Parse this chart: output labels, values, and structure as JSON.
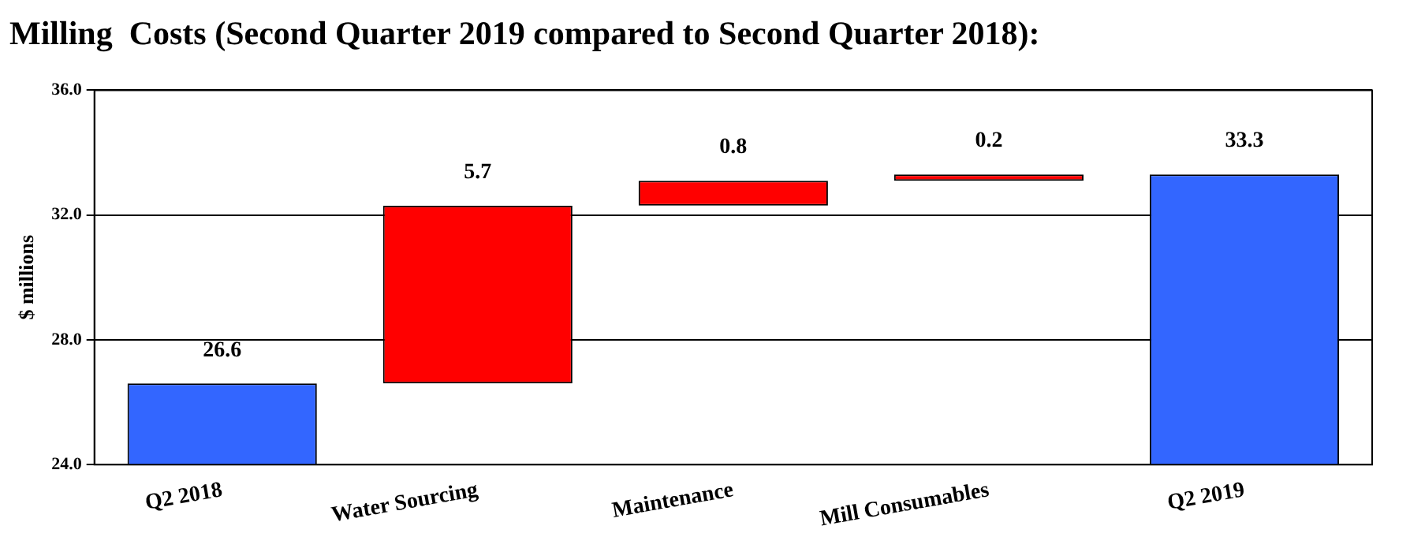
{
  "chart_data": {
    "type": "bar",
    "title": "Milling  Costs (Second Quarter 2019 compared to Second Quarter 2018):",
    "ylabel": "$ millions",
    "categories": [
      "Q2 2018",
      "Water Sourcing",
      "Maintenance",
      "Mill Consumables",
      "Q2 2019"
    ],
    "values": [
      26.6,
      5.7,
      0.8,
      0.2,
      33.3
    ],
    "base": [
      null,
      26.6,
      32.3,
      33.1,
      null
    ],
    "colors": [
      "#3366ff",
      "#ff0000",
      "#ff0000",
      "#ff0000",
      "#3366ff"
    ],
    "ylim": [
      24,
      36
    ],
    "yticks": [
      {
        "value": 24,
        "label": "24.0"
      },
      {
        "value": 28,
        "label": "28.0"
      },
      {
        "value": 32,
        "label": "32.0"
      },
      {
        "value": 36,
        "label": "36.0"
      }
    ],
    "grid": "y",
    "data_labels": true,
    "legend": false
  }
}
